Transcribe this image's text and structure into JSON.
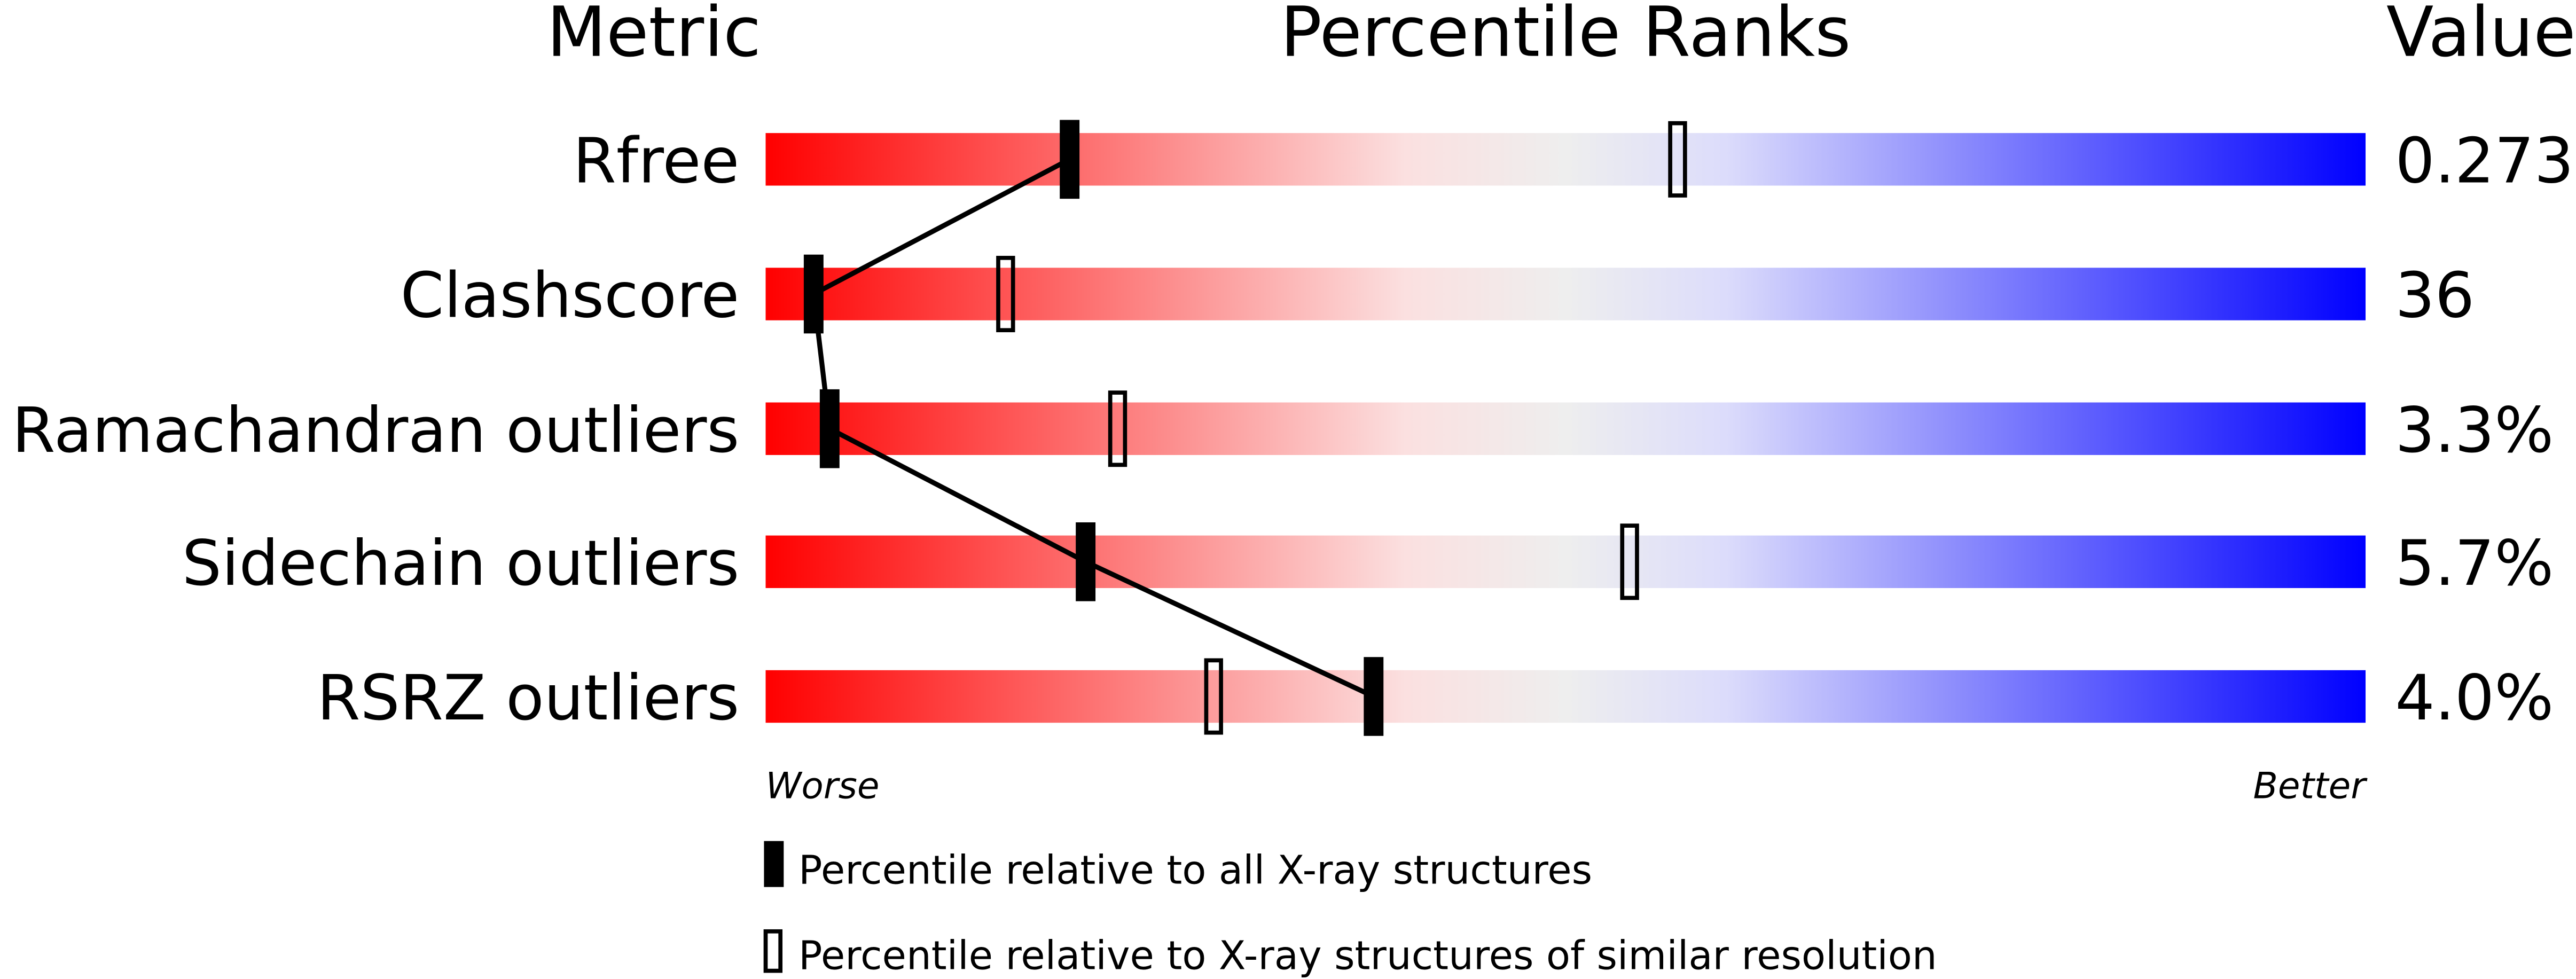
{
  "chart_data": {
    "type": "bar",
    "headers": {
      "metric": "Metric",
      "ranks": "Percentile Ranks",
      "value": "Value"
    },
    "xlim": [
      0,
      100
    ],
    "axis_labels": {
      "left": "Worse",
      "right": "Better"
    },
    "gradient_colors": [
      "#ff0000",
      "#fbe0e0",
      "#eeeeee",
      "#dcdcfb",
      "#0000ff"
    ],
    "categories": [
      "Rfree",
      "Clashscore",
      "Ramachandran outliers",
      "Sidechain outliers",
      "RSRZ outliers"
    ],
    "values_text": [
      "0.273",
      "36",
      "3.3%",
      "5.7%",
      "4.0%"
    ],
    "series": [
      {
        "name": "Percentile relative to all X-ray structures",
        "marker": "filled",
        "values": [
          19,
          3,
          4,
          20,
          38
        ]
      },
      {
        "name": "Percentile relative to X-ray structures of similar resolution",
        "marker": "hollow",
        "values": [
          57,
          15,
          22,
          54,
          28
        ]
      }
    ],
    "legend": "bottom"
  }
}
